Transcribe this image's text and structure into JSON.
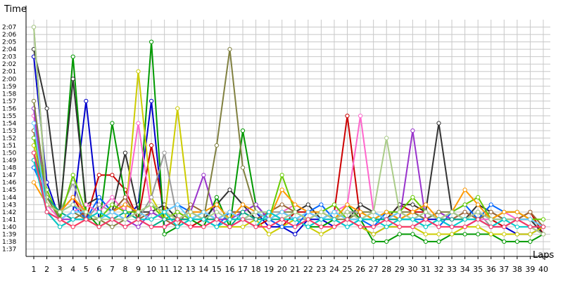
{
  "chart_data": {
    "type": "line",
    "x_axis_title": "Laps",
    "y_axis_title": "Time",
    "grid": true,
    "x_ticks": [
      1,
      2,
      3,
      4,
      5,
      6,
      7,
      8,
      9,
      10,
      11,
      12,
      13,
      14,
      15,
      16,
      17,
      18,
      19,
      20,
      21,
      22,
      23,
      24,
      25,
      26,
      27,
      28,
      29,
      30,
      31,
      32,
      33,
      34,
      35,
      36,
      37,
      38,
      39,
      40
    ],
    "xlim": [
      1,
      40
    ],
    "ylim_seconds": [
      96,
      128
    ],
    "y_ticks": [
      "1:37",
      "1:38",
      "1:39",
      "1:40",
      "1:41",
      "1:42",
      "1:43",
      "1:44",
      "1:45",
      "1:46",
      "1:47",
      "1:48",
      "1:49",
      "1:50",
      "1:51",
      "1:52",
      "1:53",
      "1:54",
      "1:55",
      "1:56",
      "1:57",
      "1:58",
      "1:59",
      "2:00",
      "2:01",
      "2:02",
      "2:03",
      "2:04",
      "2:05",
      "2:06",
      "2:07"
    ],
    "series": [
      {
        "color": "#0000cc",
        "values": [
          123,
          106,
          101,
          102,
          117,
          101,
          102,
          101,
          103,
          117,
          100,
          101,
          101,
          102,
          101,
          100,
          101,
          102,
          100,
          100,
          99,
          101,
          101,
          100,
          101,
          100,
          99,
          100,
          100,
          100,
          101,
          101,
          100,
          100,
          101,
          100,
          100,
          99,
          99,
          100
        ]
      },
      {
        "color": "#cc0000",
        "values": [
          109,
          103,
          102,
          104,
          101,
          107,
          107,
          105,
          101,
          111,
          102,
          101,
          100,
          101,
          101,
          102,
          101,
          100,
          101,
          100,
          102,
          102,
          101,
          102,
          115,
          101,
          102,
          101,
          103,
          102,
          102,
          101,
          102,
          101,
          102,
          101,
          100,
          101,
          102,
          99
        ]
      },
      {
        "color": "#009900",
        "values": [
          110,
          102,
          101,
          123,
          102,
          100,
          114,
          104,
          101,
          125,
          99,
          100,
          101,
          100,
          104,
          100,
          113,
          103,
          101,
          102,
          101,
          100,
          100,
          101,
          103,
          101,
          98,
          98,
          99,
          99,
          98,
          98,
          99,
          99,
          99,
          99,
          98,
          98,
          98,
          99
        ]
      },
      {
        "color": "#333333",
        "values": [
          124,
          116,
          102,
          120,
          103,
          104,
          102,
          110,
          102,
          102,
          103,
          101,
          102,
          101,
          103,
          105,
          103,
          101,
          102,
          101,
          102,
          103,
          101,
          102,
          101,
          103,
          102,
          101,
          103,
          103,
          102,
          114,
          102,
          101,
          103,
          102,
          101,
          101,
          101,
          99
        ]
      },
      {
        "color": "#cccc00",
        "values": [
          111,
          104,
          101,
          100,
          101,
          100,
          101,
          101,
          121,
          104,
          101,
          116,
          101,
          101,
          100,
          100,
          100,
          101,
          99,
          100,
          101,
          100,
          99,
          100,
          101,
          100,
          99,
          100,
          100,
          100,
          99,
          99,
          99,
          100,
          100,
          99,
          99,
          99,
          99,
          100
        ]
      },
      {
        "color": "#999999",
        "values": [
          127,
          104,
          102,
          106,
          101,
          103,
          102,
          104,
          101,
          104,
          110,
          101,
          102,
          102,
          101,
          102,
          101,
          101,
          102,
          102,
          101,
          101,
          102,
          101,
          102,
          102,
          101,
          101,
          102,
          101,
          102,
          101,
          101,
          101,
          102,
          100,
          101,
          101,
          100,
          99
        ]
      },
      {
        "color": "#0066ff",
        "values": [
          108,
          104,
          102,
          103,
          101,
          104,
          102,
          103,
          102,
          103,
          102,
          103,
          102,
          101,
          100,
          102,
          102,
          103,
          101,
          100,
          100,
          102,
          103,
          101,
          100,
          101,
          100,
          102,
          101,
          101,
          101,
          100,
          102,
          103,
          101,
          103,
          102,
          102,
          101,
          100
        ]
      },
      {
        "color": "#ff66cc",
        "values": [
          115,
          103,
          101,
          102,
          103,
          102,
          104,
          102,
          114,
          102,
          101,
          102,
          101,
          102,
          101,
          102,
          101,
          102,
          101,
          102,
          103,
          102,
          101,
          102,
          103,
          115,
          102,
          101,
          102,
          101,
          102,
          101,
          101,
          102,
          101,
          101,
          102,
          101,
          100,
          99
        ]
      },
      {
        "color": "#996633",
        "values": [
          113,
          102,
          100,
          101,
          102,
          101,
          102,
          104,
          101,
          102,
          101,
          100,
          103,
          102,
          101,
          102,
          102,
          101,
          102,
          103,
          102,
          101,
          102,
          101,
          102,
          101,
          101,
          102,
          101,
          102,
          101,
          102,
          101,
          102,
          101,
          102,
          101,
          101,
          102,
          100
        ]
      },
      {
        "color": "#9933cc",
        "values": [
          116,
          102,
          101,
          101,
          101,
          102,
          101,
          101,
          100,
          102,
          101,
          101,
          102,
          107,
          101,
          101,
          102,
          103,
          101,
          102,
          101,
          102,
          101,
          101,
          102,
          101,
          102,
          101,
          101,
          113,
          101,
          102,
          101,
          101,
          102,
          101,
          101,
          101,
          101,
          100
        ]
      },
      {
        "color": "#66cc00",
        "values": [
          112,
          105,
          101,
          107,
          102,
          101,
          103,
          102,
          102,
          103,
          101,
          102,
          101,
          102,
          103,
          101,
          101,
          102,
          101,
          107,
          102,
          101,
          102,
          103,
          101,
          102,
          101,
          102,
          102,
          104,
          102,
          101,
          102,
          103,
          104,
          101,
          102,
          102,
          101,
          101
        ]
      },
      {
        "color": "#00aa88",
        "values": [
          110,
          104,
          102,
          101,
          101,
          100,
          101,
          102,
          101,
          100,
          101,
          101,
          101,
          101,
          101,
          100,
          102,
          101,
          101,
          101,
          101,
          100,
          101,
          102,
          101,
          101,
          101,
          101,
          101,
          101,
          100,
          101,
          101,
          101,
          101,
          100,
          100,
          101,
          100,
          100
        ]
      },
      {
        "color": "#808040",
        "values": [
          117,
          104,
          101,
          102,
          101,
          101,
          100,
          101,
          102,
          101,
          102,
          101,
          102,
          101,
          111,
          124,
          108,
          102,
          101,
          102,
          102,
          101,
          102,
          101,
          101,
          102,
          102,
          101,
          102,
          102,
          101,
          102,
          102,
          101,
          102,
          101,
          101,
          101,
          101,
          100
        ]
      },
      {
        "color": "#ff9900",
        "values": [
          106,
          103,
          102,
          104,
          102,
          101,
          102,
          103,
          102,
          101,
          102,
          101,
          102,
          102,
          103,
          101,
          103,
          102,
          101,
          105,
          103,
          102,
          102,
          101,
          103,
          102,
          101,
          102,
          101,
          102,
          103,
          101,
          102,
          105,
          103,
          101,
          102,
          102,
          101,
          100
        ]
      },
      {
        "color": "#66ccff",
        "values": [
          114,
          102,
          101,
          102,
          102,
          101,
          102,
          101,
          102,
          101,
          102,
          103,
          101,
          102,
          101,
          102,
          101,
          102,
          101,
          102,
          101,
          102,
          101,
          102,
          101,
          101,
          102,
          101,
          102,
          101,
          102,
          101,
          102,
          101,
          102,
          101,
          101,
          101,
          101,
          100
        ]
      },
      {
        "color": "#aacc88",
        "values": [
          127,
          103,
          102,
          103,
          102,
          101,
          101,
          101,
          102,
          103,
          102,
          101,
          102,
          101,
          102,
          101,
          101,
          102,
          102,
          101,
          102,
          101,
          102,
          101,
          102,
          101,
          102,
          112,
          102,
          101,
          102,
          101,
          102,
          101,
          102,
          101,
          101,
          101,
          100,
          99
        ]
      },
      {
        "color": "#00cccc",
        "values": [
          109,
          102,
          100,
          101,
          101,
          102,
          101,
          100,
          101,
          101,
          102,
          100,
          101,
          101,
          100,
          101,
          101,
          100,
          102,
          101,
          101,
          100,
          101,
          101,
          100,
          101,
          101,
          100,
          101,
          101,
          100,
          101,
          100,
          101,
          101,
          100,
          101,
          100,
          100,
          100
        ]
      },
      {
        "color": "#ff3366",
        "values": [
          110,
          102,
          101,
          100,
          101,
          100,
          101,
          100,
          101,
          100,
          100,
          101,
          100,
          100,
          101,
          100,
          101,
          100,
          100,
          101,
          100,
          101,
          100,
          100,
          101,
          100,
          100,
          101,
          100,
          100,
          101,
          100,
          100,
          100,
          101,
          100,
          100,
          101,
          100,
          100
        ]
      }
    ],
    "series_colors_note": "",
    "line_style": "connected points, open circle markers"
  }
}
